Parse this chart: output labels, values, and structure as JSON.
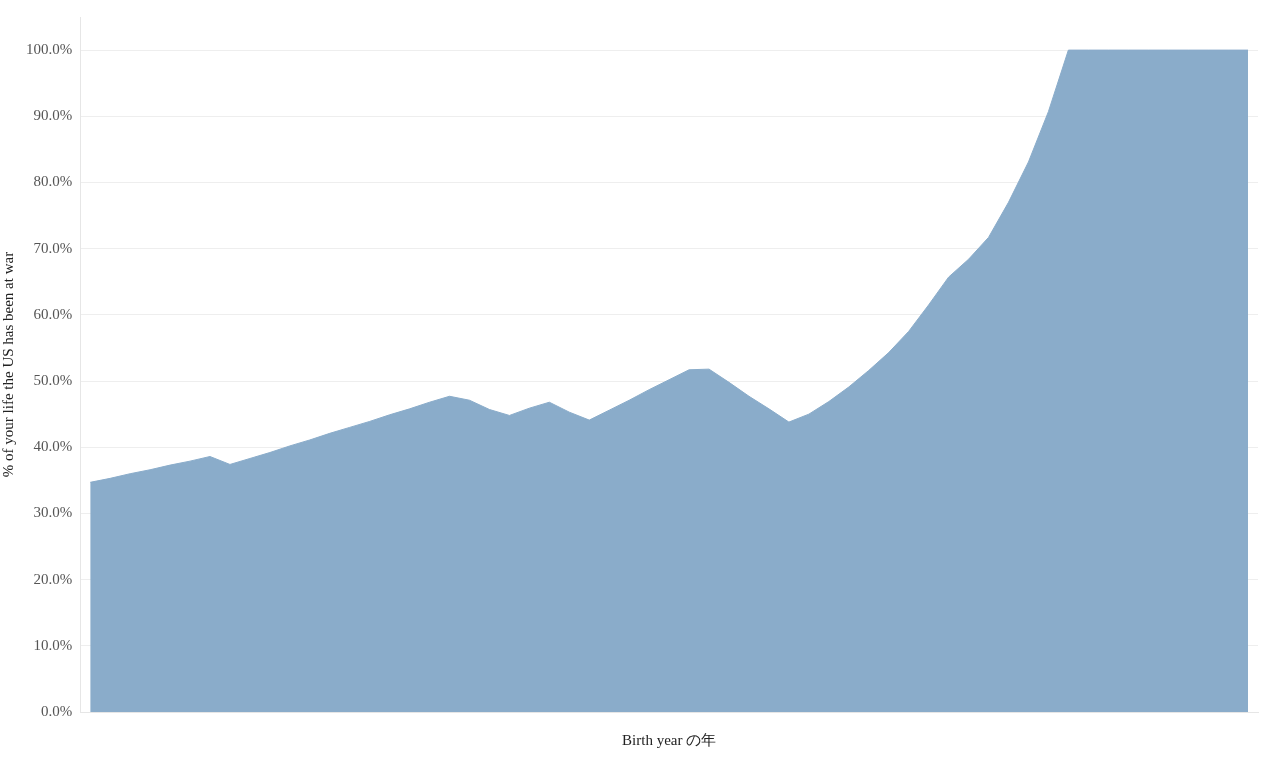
{
  "chart_data": {
    "type": "area",
    "xlabel": "Birth year の年",
    "ylabel": "% of your life the US has been at war",
    "categories": [
      null,
      null,
      null,
      null,
      null,
      null,
      null,
      null,
      null,
      null,
      null,
      null,
      null,
      null,
      null,
      null,
      null,
      null,
      null,
      null,
      null,
      null,
      null,
      null,
      null,
      null,
      null,
      null,
      null,
      null,
      null,
      null,
      null,
      null,
      null,
      null,
      null,
      null,
      null,
      null,
      null,
      null,
      null,
      null,
      null,
      null,
      null,
      null,
      null,
      null,
      null,
      null,
      null,
      null,
      null,
      null,
      null,
      null,
      null
    ],
    "series": [
      {
        "color": "#8aacca",
        "values": [
          34.7,
          35.3,
          36.0,
          36.6,
          37.3,
          37.9,
          38.6,
          37.4,
          38.3,
          39.2,
          40.2,
          41.1,
          42.1,
          43.0,
          43.9,
          44.9,
          45.8,
          46.8,
          47.7,
          47.1,
          45.7,
          44.8,
          45.9,
          46.8,
          45.3,
          44.1,
          45.6,
          47.1,
          48.7,
          50.2,
          51.7,
          51.8,
          49.8,
          47.7,
          45.8,
          43.8,
          45.0,
          46.9,
          49.1,
          51.6,
          54.3,
          57.5,
          61.5,
          65.7,
          68.4,
          71.7,
          77.0,
          83.1,
          90.7,
          100,
          100,
          100,
          100,
          100,
          100,
          100,
          100,
          100,
          100
        ]
      }
    ],
    "ylim": [
      0,
      105
    ],
    "yticks": [
      {
        "value": 0,
        "label": "0.0%"
      },
      {
        "value": 10,
        "label": "10.0%"
      },
      {
        "value": 20,
        "label": "20.0%"
      },
      {
        "value": 30,
        "label": "30.0%"
      },
      {
        "value": 40,
        "label": "40.0%"
      },
      {
        "value": 50,
        "label": "50.0%"
      },
      {
        "value": 60,
        "label": "60.0%"
      },
      {
        "value": 70,
        "label": "70.0%"
      },
      {
        "value": 80,
        "label": "80.0%"
      },
      {
        "value": 90,
        "label": "90.0%"
      },
      {
        "value": 100,
        "label": "100.0%"
      }
    ],
    "grid": "y",
    "tick_labels": "y"
  }
}
